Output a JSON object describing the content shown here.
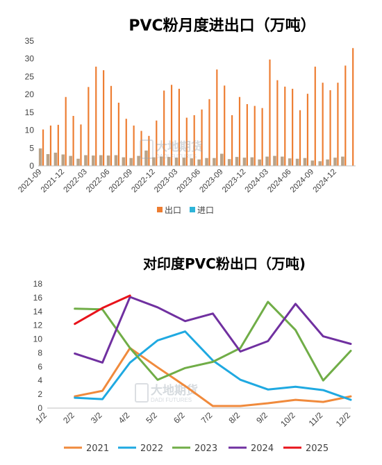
{
  "chart_data": [
    {
      "type": "bar",
      "title": "PVC粉月度进出口（万吨）",
      "ylim": [
        0,
        35
      ],
      "yticks": [
        0,
        5,
        10,
        15,
        20,
        25,
        30,
        35
      ],
      "x_tick_labels": [
        "2021-09",
        "2021-12",
        "2022-03",
        "2022-06",
        "2022-09",
        "2022-12",
        "2023-03",
        "2023-06",
        "2023-09",
        "2023-12",
        "2024-03",
        "2024-06",
        "2024-09",
        "2024-12"
      ],
      "categories": [
        "2021-09",
        "2021-10",
        "2021-11",
        "2021-12",
        "2022-01",
        "2022-02",
        "2022-03",
        "2022-04",
        "2022-05",
        "2022-06",
        "2022-07",
        "2022-08",
        "2022-09",
        "2022-10",
        "2022-11",
        "2022-12",
        "2023-01",
        "2023-02",
        "2023-03",
        "2023-04",
        "2023-05",
        "2023-06",
        "2023-07",
        "2023-08",
        "2023-09",
        "2023-10",
        "2023-11",
        "2023-12",
        "2024-01",
        "2024-02",
        "2024-03",
        "2024-04",
        "2024-05",
        "2024-06",
        "2024-07",
        "2024-08",
        "2024-09",
        "2024-10",
        "2024-11",
        "2024-12",
        "2025-01"
      ],
      "series": [
        {
          "name": "出口",
          "color": "#ed7d31",
          "values": [
            10.2,
            11.3,
            11.5,
            19.3,
            14.0,
            11.6,
            22.1,
            27.8,
            26.8,
            22.4,
            17.7,
            13.2,
            11.3,
            9.8,
            8.4,
            12.7,
            21.1,
            22.7,
            21.6,
            13.5,
            14.2,
            15.8,
            18.7,
            27.0,
            22.5,
            14.2,
            19.3,
            17.3,
            16.8,
            16.2,
            29.8,
            24.0,
            22.2,
            21.6,
            15.6,
            20.2,
            27.8,
            23.3,
            21.2,
            23.3,
            28.1
          ]
        },
        {
          "name": "进口",
          "color": "#2eb4d8",
          "values": [
            4.9,
            3.3,
            3.7,
            3.2,
            2.8,
            2.0,
            3.0,
            2.9,
            3.0,
            2.9,
            3.0,
            2.4,
            2.2,
            2.8,
            4.3,
            2.4,
            2.6,
            2.5,
            2.3,
            2.3,
            2.1,
            1.8,
            2.2,
            2.2,
            3.4,
            1.9,
            2.5,
            2.3,
            2.4,
            1.8,
            2.6,
            2.8,
            2.6,
            2.1,
            2.0,
            2.2,
            1.5,
            1.3,
            1.8,
            2.3,
            2.6
          ]
        }
      ],
      "last_bar": {
        "category": "2025-02",
        "value": 33.0
      },
      "legend": [
        "出口",
        "进口"
      ],
      "legend_position": "bottom",
      "watermark": {
        "cn": "大地期货",
        "en": "DADI FUTURES"
      }
    },
    {
      "type": "line",
      "title": "对印度PVC粉出口（万吨)",
      "ylim": [
        0,
        18
      ],
      "yticks": [
        0,
        2,
        4,
        6,
        8,
        10,
        12,
        14,
        16,
        18
      ],
      "x": [
        "1/2",
        "2/2",
        "3/2",
        "4/2",
        "5/2",
        "6/2",
        "7/2",
        "8/2",
        "9/2",
        "10/2",
        "11/2",
        "12/2"
      ],
      "series": [
        {
          "name": "2021",
          "color": "#f08a3c",
          "values": [
            null,
            1.7,
            2.5,
            8.7,
            5.9,
            3.2,
            0.3,
            0.3,
            0.7,
            1.2,
            0.9,
            1.7
          ]
        },
        {
          "name": "2022",
          "color": "#1fa9e1",
          "values": [
            null,
            1.5,
            1.3,
            6.6,
            9.8,
            11.1,
            6.9,
            4.1,
            2.7,
            3.1,
            2.6,
            1.2
          ]
        },
        {
          "name": "2023",
          "color": "#70ad47",
          "values": [
            null,
            14.4,
            14.3,
            8.7,
            4.1,
            5.8,
            6.7,
            8.7,
            15.4,
            11.3,
            4.0,
            8.3
          ]
        },
        {
          "name": "2024",
          "color": "#7030a0",
          "values": [
            null,
            7.9,
            6.6,
            16.1,
            14.6,
            12.6,
            13.7,
            8.2,
            9.7,
            15.1,
            10.4,
            9.3
          ]
        },
        {
          "name": "2025",
          "color": "#e8131b",
          "values": [
            null,
            12.2,
            14.5,
            16.3,
            null,
            null,
            null,
            null,
            null,
            null,
            null,
            null
          ]
        }
      ],
      "legend_position": "bottom",
      "watermark": {
        "cn": "大地期货",
        "en": "DADI FUTURES"
      }
    }
  ]
}
